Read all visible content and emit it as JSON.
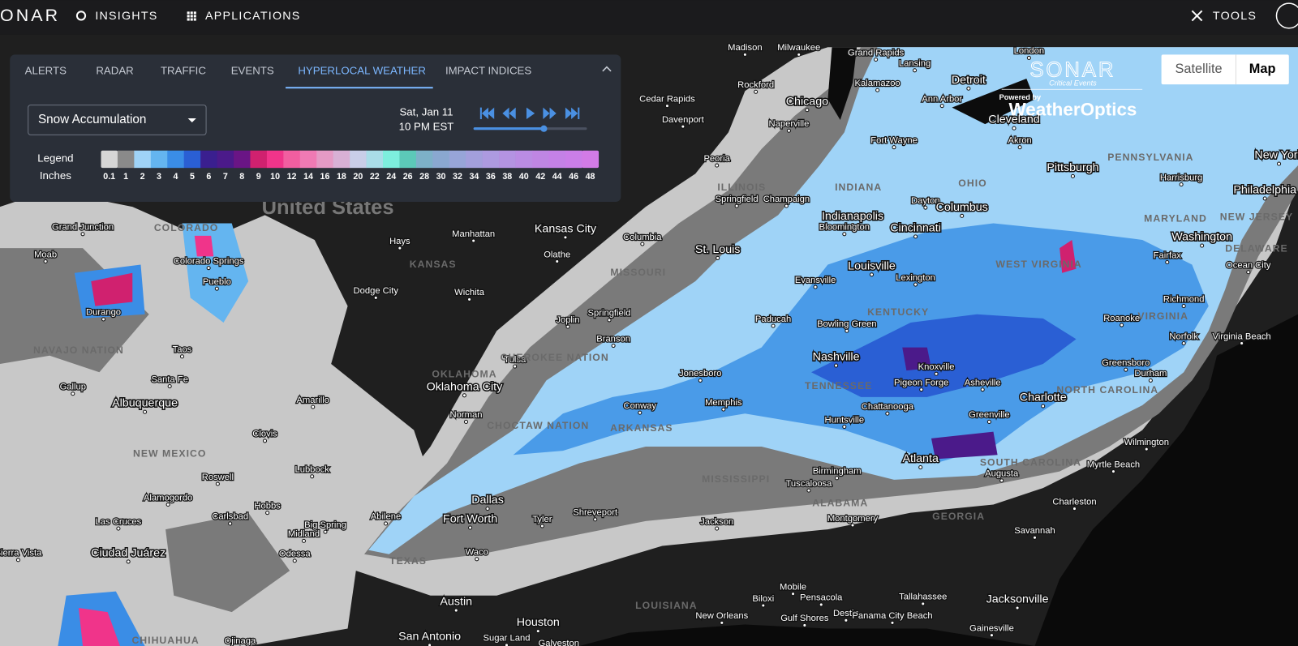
{
  "nav": {
    "logo": "ONAR",
    "items": [
      "INSIGHTS",
      "APPLICATIONS"
    ],
    "tools": "TOOLS"
  },
  "panel": {
    "tabs": [
      "ALERTS",
      "RADAR",
      "TRAFFIC",
      "EVENTS",
      "HYPERLOCAL WEATHER",
      "IMPACT INDICES"
    ],
    "active_tab": 4,
    "dropdown": "Snow Accumulation",
    "date": "Sat, Jan 11",
    "time": "10 PM EST",
    "legend_title": "Legend",
    "legend_unit": "Inches",
    "legend": {
      "labels": [
        "0.1",
        "1",
        "2",
        "3",
        "4",
        "5",
        "6",
        "7",
        "8",
        "9",
        "10",
        "12",
        "14",
        "16",
        "18",
        "20",
        "22",
        "24",
        "26",
        "28",
        "30",
        "32",
        "34",
        "36",
        "38",
        "40",
        "42",
        "44",
        "46",
        "48"
      ],
      "colors": [
        "#d6d6d6",
        "#8a8a8a",
        "#9fd3f7",
        "#64b5f0",
        "#3a8de6",
        "#2a5fd4",
        "#3a1f8f",
        "#4b1a8a",
        "#6a1585",
        "#d0216f",
        "#f0348a",
        "#f25ea0",
        "#f07ab4",
        "#e59ac5",
        "#d8b0d5",
        "#c9cee8",
        "#a9dde8",
        "#7deedd",
        "#5cc9b8",
        "#7db1c8",
        "#8aa8d0",
        "#97a5d8",
        "#a39fdc",
        "#ad9ae0",
        "#b493e2",
        "#ba8ce3",
        "#bf86e3",
        "#c481e6",
        "#ca7ee8",
        "#d27be6"
      ]
    }
  },
  "map_toggle": [
    "Satellite",
    "Map"
  ],
  "brand": {
    "name": "SONAR",
    "tagline": "Critical Events",
    "powered": "Powered by",
    "partner": "WeatherOptics"
  },
  "map": {
    "labels": [
      "Milwaukee",
      "Madison",
      "Grand Rapids",
      "Lansing",
      "London",
      "Detroit",
      "Rockford",
      "Cedar Rapids",
      "Chicago",
      "Ann Arbor",
      "Kalamazoo",
      "Davenport",
      "Naperville",
      "Cleveland",
      "Fort Wayne",
      "Akron",
      "Peoria",
      "Pittsburgh",
      "PENNSYLVANIA",
      "New York",
      "Harrisburg",
      "ILLINOIS",
      "INDIANA",
      "OHIO",
      "Springfield",
      "Champaign",
      "Dayton",
      "Columbus",
      "Philadelphia",
      "United States",
      "Indianapolis",
      "Bloomington",
      "Cincinnati",
      "MARYLAND",
      "NEW JERSEY",
      "Manhattan",
      "Kansas City",
      "Columbia",
      "Hays",
      "Olathe",
      "St. Louis",
      "Washington",
      "DELAWARE",
      "Fairfax",
      "KANSAS",
      "Ocean City",
      "WEST VIRGINIA",
      "Louisville",
      "MISSOURI",
      "Lexington",
      "Evansville",
      "Dodge City",
      "Wichita",
      "Richmond",
      "KENTUCKY",
      "Springfield",
      "Joplin",
      "Roanoke",
      "VIRGINIA",
      "Paducah",
      "Bowling Green",
      "Norfolk",
      "Virginia Beach",
      "Branson",
      "Nashville",
      "Knoxville",
      "Tulsa",
      "CHEROKEE NATION",
      "Greensboro",
      "Durham",
      "Jonesboro",
      "OKLAHOMA",
      "Pigeon Forge",
      "Asheville",
      "TENNESSEE",
      "NORTH CAROLINA",
      "Oklahoma City",
      "Charlotte",
      "Memphis",
      "Conway",
      "Chattanooga",
      "Norman",
      "Huntsville",
      "Greenville",
      "ARKANSAS",
      "CHOCTAW NATION",
      "Wilmington",
      "Atlanta",
      "Birmingham",
      "SOUTH CAROLINA",
      "Myrtle Beach",
      "Augusta",
      "MISSISSIPPI",
      "Tuscaloosa",
      "ALABAMA",
      "Dallas",
      "Charleston",
      "Fort Worth",
      "Shreveport",
      "Tyler",
      "Montgomery",
      "GEORGIA",
      "Jackson",
      "Savannah",
      "Abilene",
      "Waco",
      "TEXAS",
      "Austin",
      "Mobile",
      "Pensacola",
      "Tallahassee",
      "Jacksonville",
      "LOUISIANA",
      "Biloxi",
      "New Orleans",
      "Gulf Shores",
      "Destin",
      "Panama City Beach",
      "Houston",
      "Gainesville",
      "San Antonio",
      "Sugar Land",
      "Galveston",
      "COLORADO",
      "Grand Junction",
      "Moab",
      "Colorado Springs",
      "Pueblo",
      "Durango",
      "NAVAJO NATION",
      "Taos",
      "Santa Fe",
      "Gallup",
      "Albuquerque",
      "Amarillo",
      "Clovis",
      "NEW MEXICO",
      "Lubbock",
      "Roswell",
      "Alamogordo",
      "Hobbs",
      "Carlsbad",
      "Las Cruces",
      "Big Spring",
      "Midland",
      "Odessa",
      "Ciudad Juárez",
      "Sierra Vista",
      "CHIHUAHUA",
      "Ojinaga"
    ]
  }
}
